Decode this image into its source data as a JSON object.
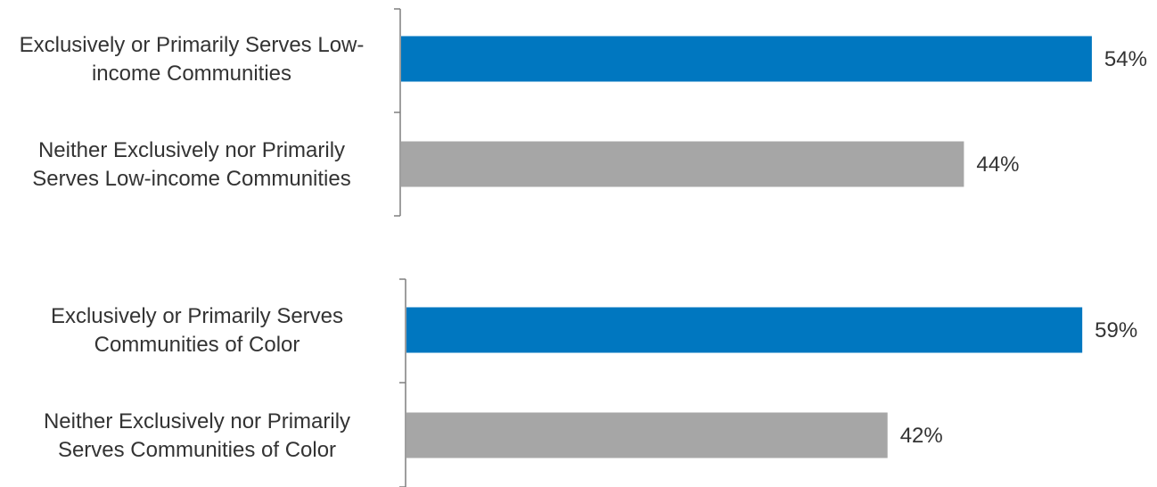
{
  "chart_data": [
    {
      "type": "bar",
      "orientation": "horizontal",
      "categories": [
        "Exclusively or Primarily Serves Low-income Communities",
        "Neither Exclusively nor Primarily Serves Low-income Communities"
      ],
      "category_label_lines": [
        [
          "Exclusively or Primarily Serves Low-",
          "income Communities"
        ],
        [
          "Neither Exclusively nor Primarily",
          "Serves Low-income Communities"
        ]
      ],
      "values": [
        54,
        44
      ],
      "value_labels": [
        "54%",
        "44%"
      ],
      "colors": [
        "#0077C0",
        "#A6A6A6"
      ],
      "xlim": [
        0,
        100
      ],
      "title": "",
      "xlabel": "",
      "ylabel": "",
      "grid": false,
      "legend": "none"
    },
    {
      "type": "bar",
      "orientation": "horizontal",
      "categories": [
        "Exclusively or Primarily Serves Communities of Color",
        "Neither Exclusively nor Primarily Serves Communities of Color"
      ],
      "category_label_lines": [
        [
          "Exclusively or Primarily Serves",
          "Communities of Color"
        ],
        [
          "Neither Exclusively nor Primarily",
          "Serves Communities of Color"
        ]
      ],
      "values": [
        59,
        42
      ],
      "value_labels": [
        "59%",
        "42%"
      ],
      "colors": [
        "#0077C0",
        "#A6A6A6"
      ],
      "xlim": [
        0,
        100
      ],
      "title": "",
      "xlabel": "",
      "ylabel": "",
      "grid": false,
      "legend": "none"
    }
  ]
}
